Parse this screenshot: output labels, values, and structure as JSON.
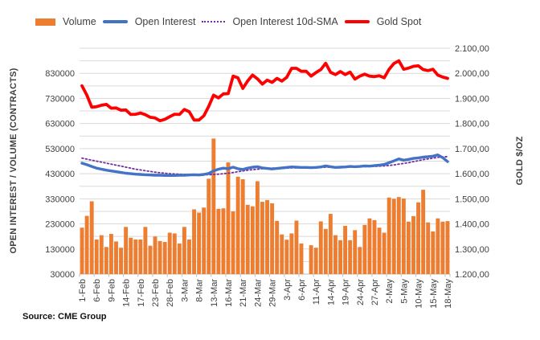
{
  "chart_data": {
    "type": "combo",
    "title": "",
    "source": "Source: CME Group",
    "legend_position": "top",
    "grid": "horizontal",
    "x": [
      "1-Feb",
      "2-Feb",
      "3-Feb",
      "6-Feb",
      "7-Feb",
      "8-Feb",
      "9-Feb",
      "10-Feb",
      "13-Feb",
      "14-Feb",
      "15-Feb",
      "16-Feb",
      "17-Feb",
      "21-Feb",
      "22-Feb",
      "23-Feb",
      "24-Feb",
      "27-Feb",
      "28-Feb",
      "1-Mar",
      "2-Mar",
      "3-Mar",
      "6-Mar",
      "7-Mar",
      "8-Mar",
      "9-Mar",
      "10-Mar",
      "13-Mar",
      "14-Mar",
      "15-Mar",
      "16-Mar",
      "17-Mar",
      "20-Mar",
      "21-Mar",
      "22-Mar",
      "23-Mar",
      "24-Mar",
      "27-Mar",
      "28-Mar",
      "29-Mar",
      "30-Mar",
      "31-Mar",
      "3-Apr",
      "4-Apr",
      "5-Apr",
      "6-Apr",
      "7-Apr",
      "10-Apr",
      "11-Apr",
      "12-Apr",
      "13-Apr",
      "14-Apr",
      "17-Apr",
      "18-Apr",
      "19-Apr",
      "20-Apr",
      "21-Apr",
      "24-Apr",
      "25-Apr",
      "26-Apr",
      "27-Apr",
      "28-Apr",
      "1-May",
      "2-May",
      "3-May",
      "4-May",
      "5-May",
      "8-May",
      "9-May",
      "10-May",
      "11-May",
      "12-May",
      "15-May",
      "16-May",
      "17-May",
      "18-May"
    ],
    "x_tick_every": 3,
    "series": [
      {
        "name": "Volume",
        "type": "bar",
        "axis": "left",
        "color": "#ED7D31",
        "values": [
          215000,
          262000,
          320000,
          168000,
          185000,
          138000,
          190000,
          160000,
          135000,
          218000,
          175000,
          168000,
          168000,
          218000,
          143000,
          180000,
          162000,
          158000,
          195000,
          192000,
          152000,
          218000,
          168000,
          288000,
          275000,
          295000,
          410000,
          570000,
          290000,
          292000,
          475000,
          280000,
          418000,
          408000,
          306000,
          300000,
          400000,
          318000,
          325000,
          312000,
          242000,
          188000,
          167000,
          192000,
          243000,
          152000,
          0,
          145000,
          135000,
          240000,
          210000,
          270000,
          185000,
          165000,
          222000,
          165000,
          205000,
          138000,
          226000,
          252000,
          245000,
          215000,
          195000,
          335000,
          330000,
          337000,
          331000,
          239000,
          261000,
          316000,
          366000,
          236000,
          200000,
          252000,
          239000,
          241000
        ]
      },
      {
        "name": "Open Interest",
        "type": "line",
        "axis": "left",
        "color": "#4472C4",
        "values": [
          472000,
          466000,
          459000,
          452000,
          448000,
          444000,
          441000,
          438000,
          435000,
          432000,
          430000,
          428000,
          427000,
          426000,
          425000,
          424000,
          424000,
          423000,
          423000,
          423000,
          424000,
          424000,
          425000,
          426000,
          425000,
          427000,
          431000,
          441000,
          448000,
          452000,
          450000,
          456000,
          450000,
          447000,
          452000,
          456000,
          458000,
          453000,
          451000,
          449000,
          451000,
          453000,
          455000,
          457000,
          456000,
          455000,
          455000,
          454000,
          455000,
          457000,
          461000,
          458000,
          455000,
          456000,
          457000,
          459000,
          458000,
          459000,
          461000,
          460000,
          462000,
          464000,
          467000,
          474000,
          481000,
          489000,
          484000,
          487000,
          491000,
          493000,
          496000,
          498000,
          500000,
          505000,
          494000,
          478000
        ]
      },
      {
        "name": "Open Interest 10d-SMA",
        "type": "line",
        "style": "dotted",
        "axis": "left",
        "color": "#7030A0",
        "derived": "10-day simple moving average of Open Interest",
        "values": [
          492000,
          488000,
          484000,
          480000,
          476000,
          472000,
          468000,
          464000,
          460000,
          456000,
          452000,
          448000,
          445000,
          442000,
          439000,
          436000,
          434000,
          432000,
          430000,
          429000,
          428000,
          427000,
          427000,
          426000,
          426000,
          426000,
          426000,
          427000,
          428000,
          430000,
          432000,
          435000,
          438000,
          441000,
          444000,
          446000,
          448000,
          450000,
          451000,
          452000,
          452000,
          452000,
          452000,
          453000,
          453000,
          454000,
          454000,
          454000,
          455000,
          455000,
          456000,
          456000,
          456000,
          456000,
          457000,
          457000,
          457000,
          458000,
          458000,
          459000,
          459000,
          460000,
          461000,
          463000,
          465000,
          468000,
          471000,
          474000,
          478000,
          482000,
          486000,
          489000,
          492000,
          495000,
          497000,
          498000
        ]
      },
      {
        "name": "Gold Spot",
        "type": "line",
        "axis": "right",
        "color": "#FF0000",
        "values": [
          1950,
          1913,
          1865,
          1867,
          1873,
          1876,
          1861,
          1862,
          1853,
          1854,
          1836,
          1837,
          1842,
          1835,
          1825,
          1822,
          1811,
          1817,
          1827,
          1837,
          1836,
          1856,
          1847,
          1814,
          1814,
          1831,
          1868,
          1913,
          1902,
          1918,
          1919,
          1989,
          1982,
          1940,
          1970,
          1993,
          1978,
          1957,
          1973,
          1964,
          1980,
          1969,
          1984,
          2020,
          2020,
          2008,
          2008,
          1989,
          2003,
          2015,
          2040,
          2004,
          1995,
          2007,
          1995,
          2005,
          1977,
          1989,
          1997,
          1989,
          1987,
          1990,
          1982,
          2016,
          2039,
          2050,
          2016,
          2021,
          2028,
          2030,
          2015,
          2011,
          2016,
          1993,
          1985,
          1980
        ]
      }
    ],
    "left_axis": {
      "title": "OPEN INTEREST / VOLUME (CONTRACTS)",
      "min": 30000,
      "max": 930000,
      "grid_step": 50000,
      "label_step": 100000,
      "tick_labels": [
        "30000",
        "130000",
        "230000",
        "330000",
        "430000",
        "530000",
        "630000",
        "730000",
        "830000"
      ]
    },
    "right_axis": {
      "title": "GOLD $/OZ",
      "min": 1200,
      "max": 2100,
      "label_step": 100,
      "tick_labels": [
        "1.200,00",
        "1.300,00",
        "1.400,00",
        "1.500,00",
        "1.600,00",
        "1.700,00",
        "1.800,00",
        "1.900,00",
        "2.000,00",
        "2.100,00"
      ]
    },
    "colors": {
      "grid": "#D9D9D9",
      "axis_line": "#BFBFBF",
      "tick_text": "#404040"
    }
  }
}
